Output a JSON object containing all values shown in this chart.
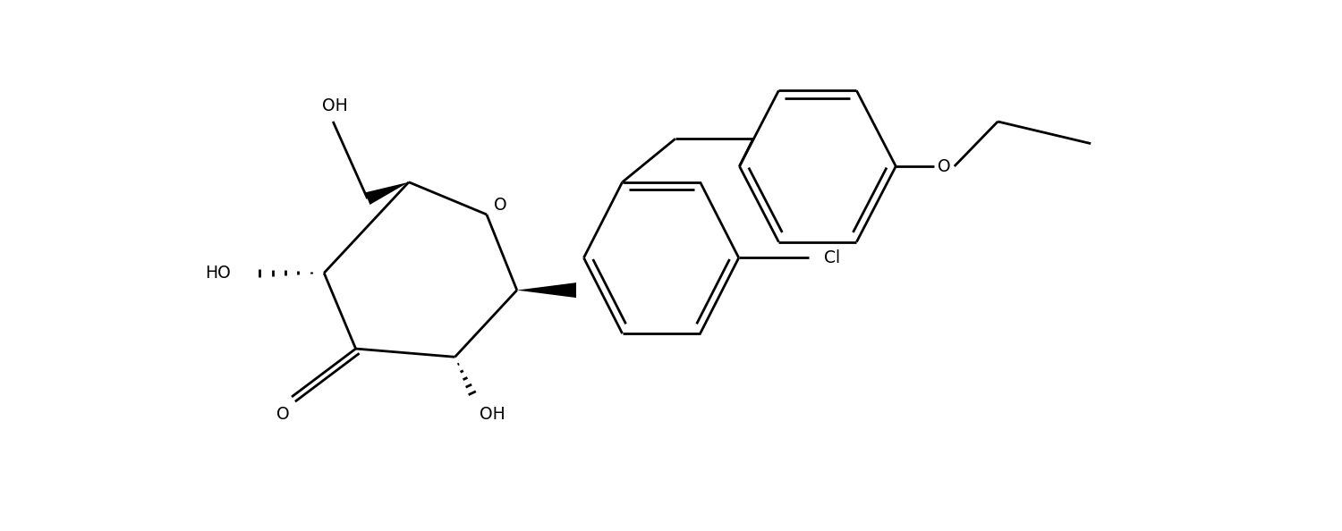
{
  "bg_color": "#ffffff",
  "line_color": "#000000",
  "lw": 2.0,
  "fs": 13.5,
  "figsize": [
    15.0,
    5.94
  ],
  "dpi": 100,
  "xlim": [
    0.0,
    15.0
  ],
  "ylim": [
    0.0,
    5.94
  ]
}
